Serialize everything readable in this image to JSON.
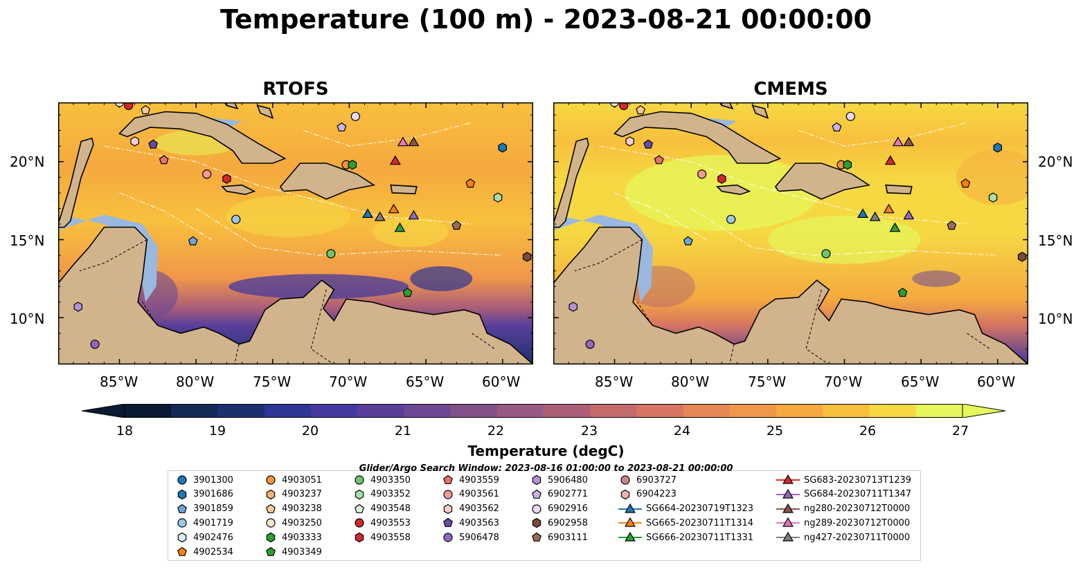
{
  "title": "Temperature (100 m) - 2023-08-21 00:00:00",
  "panels": [
    {
      "title": "RTOFS",
      "id": "rtofs"
    },
    {
      "title": "CMEMS",
      "id": "cmems"
    }
  ],
  "map": {
    "lon_ticks": [
      "85°W",
      "80°W",
      "75°W",
      "70°W",
      "65°W",
      "60°W"
    ],
    "lat_ticks": [
      "20°N",
      "15°N",
      "10°N"
    ],
    "land_color": "#d2b48c",
    "shelf_color": "#9ab8e0"
  },
  "colorbar": {
    "label": "Temperature (degC)",
    "ticks": [
      "18",
      "19",
      "20",
      "21",
      "22",
      "23",
      "24",
      "25",
      "26",
      "27"
    ],
    "min": 18,
    "max": 27,
    "colormap": "thermal",
    "colors": [
      "#0a1a33",
      "#122a55",
      "#1c3070",
      "#2e3594",
      "#44399e",
      "#5a3f9a",
      "#6e4893",
      "#83508a",
      "#985a83",
      "#ad5f77",
      "#c26a6c",
      "#d57562",
      "#e58655",
      "#f0974a",
      "#f5a93f",
      "#f8c03d",
      "#f6d843",
      "#e5f75a"
    ]
  },
  "search_window": "Glider/Argo Search Window: 2023-08-16 01:00:00 to 2023-08-21 00:00:00",
  "legend": [
    {
      "label": "3901300",
      "color": "#1f77b4",
      "shape": "circle"
    },
    {
      "label": "3901686",
      "color": "#1f77b4",
      "shape": "hexagon"
    },
    {
      "label": "3901859",
      "color": "#6ea6d6",
      "shape": "pentagon"
    },
    {
      "label": "4901719",
      "color": "#9cc7ea",
      "shape": "circle"
    },
    {
      "label": "4902476",
      "color": "#d6ecf8",
      "shape": "hexagon"
    },
    {
      "label": "4902534",
      "color": "#ff7f0e",
      "shape": "pentagon"
    },
    {
      "label": "4903051",
      "color": "#f5923a",
      "shape": "circle"
    },
    {
      "label": "4903237",
      "color": "#f7b070",
      "shape": "hexagon"
    },
    {
      "label": "4903238",
      "color": "#fbc89a",
      "shape": "pentagon"
    },
    {
      "label": "4903250",
      "color": "#fde6c8",
      "shape": "circle"
    },
    {
      "label": "4903333",
      "color": "#2ca02c",
      "shape": "hexagon"
    },
    {
      "label": "4903349",
      "color": "#2ca02c",
      "shape": "pentagon"
    },
    {
      "label": "4903350",
      "color": "#6cc66c",
      "shape": "circle"
    },
    {
      "label": "4903352",
      "color": "#a8dea8",
      "shape": "hexagon"
    },
    {
      "label": "4903548",
      "color": "#d8f2d8",
      "shape": "pentagon"
    },
    {
      "label": "4903553",
      "color": "#d62728",
      "shape": "circle"
    },
    {
      "label": "4903558",
      "color": "#d62728",
      "shape": "hexagon"
    },
    {
      "label": "4903559",
      "color": "#e5706f",
      "shape": "pentagon"
    },
    {
      "label": "4903561",
      "color": "#f29a9a",
      "shape": "circle"
    },
    {
      "label": "4903562",
      "color": "#f8cccc",
      "shape": "hexagon"
    },
    {
      "label": "4903563",
      "color": "#6a4aa6",
      "shape": "pentagon"
    },
    {
      "label": "5906478",
      "color": "#9467bd",
      "shape": "circle"
    },
    {
      "label": "5906480",
      "color": "#b294d6",
      "shape": "hexagon"
    },
    {
      "label": "6902771",
      "color": "#ccb4e8",
      "shape": "pentagon"
    },
    {
      "label": "6902916",
      "color": "#ead8f6",
      "shape": "circle"
    },
    {
      "label": "6902958",
      "color": "#7a4a3a",
      "shape": "hexagon"
    },
    {
      "label": "6903111",
      "color": "#9b6a58",
      "shape": "pentagon"
    },
    {
      "label": "6903727",
      "color": "#c08c80",
      "shape": "circle"
    },
    {
      "label": "6904223",
      "color": "#e8b4a8",
      "shape": "hexagon"
    },
    {
      "label": "SG664-20230719T1323",
      "color": "#1f77b4",
      "shape": "glider"
    },
    {
      "label": "SG665-20230711T1314",
      "color": "#ff7f0e",
      "shape": "glider"
    },
    {
      "label": "SG666-20230711T1331",
      "color": "#2ca02c",
      "shape": "glider"
    },
    {
      "label": "SG683-20230713T1239",
      "color": "#d62728",
      "shape": "glider"
    },
    {
      "label": "SG684-20230711T1347",
      "color": "#9467bd",
      "shape": "glider"
    },
    {
      "label": "ng280-20230712T0000",
      "color": "#8c564b",
      "shape": "glider"
    },
    {
      "label": "ng289-20230712T0000",
      "color": "#e377c2",
      "shape": "glider"
    },
    {
      "label": "ng427-20230711T0000",
      "color": "#7f7f7f",
      "shape": "glider"
    }
  ],
  "markers": [
    {
      "lon": -85.0,
      "lat": 23.8,
      "color": "#fde6c8",
      "shape": "circle"
    },
    {
      "lon": -84.4,
      "lat": 23.6,
      "color": "#d62728",
      "shape": "circle"
    },
    {
      "lon": -83.3,
      "lat": 23.3,
      "color": "#fbc89a",
      "shape": "pentagon"
    },
    {
      "lon": -84.0,
      "lat": 21.3,
      "color": "#f8cccc",
      "shape": "hexagon"
    },
    {
      "lon": -82.8,
      "lat": 21.1,
      "color": "#6a4aa6",
      "shape": "pentagon"
    },
    {
      "lon": -82.1,
      "lat": 20.1,
      "color": "#e5706f",
      "shape": "pentagon"
    },
    {
      "lon": -79.3,
      "lat": 19.2,
      "color": "#f29a9a",
      "shape": "circle"
    },
    {
      "lon": -78.0,
      "lat": 18.9,
      "color": "#d62728",
      "shape": "hexagon"
    },
    {
      "lon": -77.4,
      "lat": 16.3,
      "color": "#9cc7ea",
      "shape": "circle"
    },
    {
      "lon": -80.2,
      "lat": 14.9,
      "color": "#6ea6d6",
      "shape": "pentagon"
    },
    {
      "lon": -70.2,
      "lat": 19.8,
      "color": "#f5923a",
      "shape": "circle"
    },
    {
      "lon": -69.8,
      "lat": 19.8,
      "color": "#2ca02c",
      "shape": "hexagon"
    },
    {
      "lon": -69.6,
      "lat": 22.9,
      "color": "#ead8f6",
      "shape": "circle"
    },
    {
      "lon": -70.5,
      "lat": 22.2,
      "color": "#ccb4e8",
      "shape": "pentagon"
    },
    {
      "lon": -71.2,
      "lat": 14.1,
      "color": "#6cc66c",
      "shape": "circle"
    },
    {
      "lon": -66.2,
      "lat": 11.6,
      "color": "#2ca02c",
      "shape": "pentagon"
    },
    {
      "lon": -62.1,
      "lat": 18.6,
      "color": "#ff7f0e",
      "shape": "pentagon"
    },
    {
      "lon": -60.3,
      "lat": 17.7,
      "color": "#a8dea8",
      "shape": "hexagon"
    },
    {
      "lon": -60.0,
      "lat": 20.9,
      "color": "#1f77b4",
      "shape": "hexagon"
    },
    {
      "lon": -63.0,
      "lat": 15.9,
      "color": "#9b6a58",
      "shape": "pentagon"
    },
    {
      "lon": -58.4,
      "lat": 13.9,
      "color": "#7a4a3a",
      "shape": "hexagon"
    },
    {
      "lon": -87.7,
      "lat": 10.7,
      "color": "#b294d6",
      "shape": "hexagon"
    },
    {
      "lon": -86.6,
      "lat": 8.3,
      "color": "#9467bd",
      "shape": "circle"
    },
    {
      "lon": -67.0,
      "lat": 20.0,
      "color": "#d62728",
      "shape": "glider"
    },
    {
      "lon": -66.5,
      "lat": 21.2,
      "color": "#e377c2",
      "shape": "glider"
    },
    {
      "lon": -65.8,
      "lat": 21.2,
      "color": "#8c564b",
      "shape": "glider"
    },
    {
      "lon": -68.8,
      "lat": 16.6,
      "color": "#1f77b4",
      "shape": "glider"
    },
    {
      "lon": -68.0,
      "lat": 16.4,
      "color": "#7f7f7f",
      "shape": "glider"
    },
    {
      "lon": -67.1,
      "lat": 16.9,
      "color": "#ff7f0e",
      "shape": "glider"
    },
    {
      "lon": -66.7,
      "lat": 15.7,
      "color": "#2ca02c",
      "shape": "glider"
    },
    {
      "lon": -65.8,
      "lat": 16.5,
      "color": "#9467bd",
      "shape": "glider"
    }
  ]
}
